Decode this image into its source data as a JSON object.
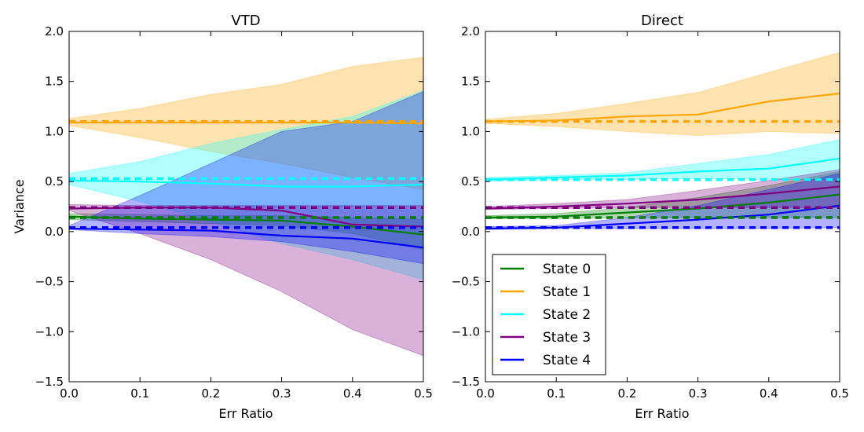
{
  "chart_data": [
    {
      "type": "line",
      "title": "VTD",
      "xlabel": "Err Ratio",
      "ylabel": "Variance",
      "xlim": [
        0.0,
        0.5
      ],
      "ylim": [
        -1.5,
        2.0
      ],
      "x": [
        0.0,
        0.1,
        0.2,
        0.3,
        0.4,
        0.5
      ],
      "xticks": [
        "0.0",
        "0.1",
        "0.2",
        "0.3",
        "0.4",
        "0.5"
      ],
      "yticks": [
        "2.0",
        "1.5",
        "1.0",
        "0.5",
        "0.0",
        "−0.5",
        "−1.0",
        "−1.5"
      ],
      "grid": false,
      "series": [
        {
          "name": "State 0",
          "color": "#007f00",
          "values": [
            0.15,
            0.13,
            0.12,
            0.11,
            0.05,
            -0.03
          ],
          "reference": 0.14,
          "band_upper": [
            0.18,
            0.17,
            0.16,
            0.16,
            0.14,
            0.12
          ],
          "band_lower": [
            0.12,
            0.1,
            0.08,
            0.06,
            -0.02,
            -0.18
          ]
        },
        {
          "name": "State 1",
          "color": "#ffa500",
          "values": [
            1.09,
            1.09,
            1.09,
            1.09,
            1.09,
            1.08
          ],
          "reference": 1.1,
          "band_upper": [
            1.13,
            1.23,
            1.37,
            1.47,
            1.65,
            1.74
          ],
          "band_lower": [
            1.06,
            0.94,
            0.8,
            0.68,
            0.54,
            0.42
          ]
        },
        {
          "name": "State 2",
          "color": "#00ffff",
          "values": [
            0.51,
            0.5,
            0.48,
            0.45,
            0.45,
            0.47
          ],
          "reference": 0.53,
          "band_upper": [
            0.58,
            0.7,
            0.88,
            1.02,
            1.15,
            1.41
          ],
          "band_lower": [
            0.47,
            0.3,
            0.1,
            -0.12,
            -0.28,
            -0.48
          ]
        },
        {
          "name": "State 3",
          "color": "#7f007f",
          "values": [
            0.23,
            0.24,
            0.24,
            0.21,
            0.07,
            0.05
          ],
          "reference": 0.24,
          "band_upper": [
            0.27,
            0.26,
            0.26,
            0.26,
            0.26,
            0.26
          ],
          "band_lower": [
            0.21,
            -0.02,
            -0.28,
            -0.6,
            -0.98,
            -1.24
          ]
        },
        {
          "name": "State 4",
          "color": "#0000ff",
          "values": [
            0.03,
            0.02,
            0.01,
            -0.04,
            -0.07,
            -0.16
          ],
          "reference": 0.04,
          "band_upper": [
            0.06,
            0.36,
            0.68,
            1.0,
            1.1,
            1.4
          ],
          "band_lower": [
            0.02,
            -0.02,
            -0.05,
            -0.1,
            -0.2,
            -0.32
          ]
        }
      ]
    },
    {
      "type": "line",
      "title": "Direct",
      "xlabel": "Err Ratio",
      "ylabel": "",
      "xlim": [
        0.0,
        0.5
      ],
      "ylim": [
        -1.5,
        2.0
      ],
      "x": [
        0.0,
        0.1,
        0.2,
        0.3,
        0.4,
        0.5
      ],
      "xticks": [
        "0.0",
        "0.1",
        "0.2",
        "0.3",
        "0.4",
        "0.5"
      ],
      "yticks": [
        "2.0",
        "1.5",
        "1.0",
        "0.5",
        "0.0",
        "−0.5",
        "−1.0",
        "−1.5"
      ],
      "grid": false,
      "legend_position": "lower-left",
      "series": [
        {
          "name": "State 0",
          "color": "#007f00",
          "values": [
            0.14,
            0.15,
            0.19,
            0.23,
            0.29,
            0.37
          ],
          "reference": 0.14,
          "band_upper": [
            0.16,
            0.18,
            0.24,
            0.34,
            0.46,
            0.6
          ],
          "band_lower": [
            0.13,
            0.13,
            0.14,
            0.14,
            0.14,
            0.14
          ]
        },
        {
          "name": "State 1",
          "color": "#ffa500",
          "values": [
            1.1,
            1.11,
            1.15,
            1.17,
            1.3,
            1.38
          ],
          "reference": 1.1,
          "band_upper": [
            1.12,
            1.18,
            1.28,
            1.39,
            1.59,
            1.79
          ],
          "band_lower": [
            1.08,
            1.05,
            1.0,
            0.96,
            1.0,
            0.98
          ]
        },
        {
          "name": "State 2",
          "color": "#00ffff",
          "values": [
            0.52,
            0.54,
            0.56,
            0.6,
            0.63,
            0.73
          ],
          "reference": 0.52,
          "band_upper": [
            0.54,
            0.56,
            0.59,
            0.68,
            0.77,
            0.92
          ],
          "band_lower": [
            0.5,
            0.52,
            0.52,
            0.53,
            0.52,
            0.52
          ]
        },
        {
          "name": "State 3",
          "color": "#7f007f",
          "values": [
            0.23,
            0.25,
            0.28,
            0.32,
            0.38,
            0.45
          ],
          "reference": 0.24,
          "band_upper": [
            0.25,
            0.28,
            0.32,
            0.41,
            0.51,
            0.62
          ],
          "band_lower": [
            0.22,
            0.23,
            0.24,
            0.24,
            0.24,
            0.24
          ]
        },
        {
          "name": "State 4",
          "color": "#0000ff",
          "values": [
            0.03,
            0.04,
            0.08,
            0.12,
            0.17,
            0.26
          ],
          "reference": 0.04,
          "band_upper": [
            0.05,
            0.06,
            0.14,
            0.26,
            0.42,
            0.58
          ],
          "band_lower": [
            0.02,
            0.03,
            0.03,
            0.03,
            0.03,
            0.04
          ]
        }
      ]
    }
  ]
}
